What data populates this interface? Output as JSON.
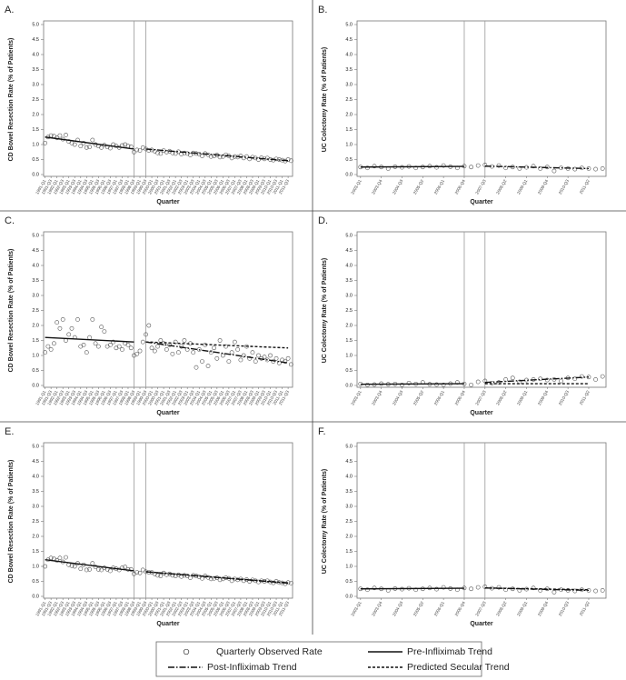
{
  "chart_data": [
    {
      "type": "scatter",
      "label": "A.",
      "y_label": "CD Bowel Resection Rate (% of Patients)",
      "x_label": "Quarter",
      "color": "#555555",
      "ylim": [
        0,
        5
      ],
      "yticks": [
        {
          "value": 0,
          "label": "0.0"
        },
        0.5,
        {
          "value": 1,
          "label": "1.0"
        },
        1.5,
        {
          "value": 2,
          "label": "2.0"
        },
        2.5,
        {
          "value": 3,
          "label": "3.0"
        },
        3.5,
        {
          "value": 4,
          "label": "4.0"
        },
        4.5,
        {
          "value": 5,
          "label": "5.0"
        }
      ],
      "categories": [
        "1991-Q1",
        null,
        "1991-Q3",
        null,
        "1992-Q1",
        null,
        "1992-Q3",
        null,
        "1993-Q1",
        null,
        "1993-Q3",
        null,
        "1994-Q1",
        null,
        "1994-Q3",
        null,
        "1995-Q1",
        null,
        "1995-Q3",
        null,
        "1996-Q1",
        null,
        "1996-Q3",
        null,
        "1997-Q1",
        null,
        "1997-Q3",
        null,
        "1998-Q1",
        null,
        "1998-Q3",
        null,
        "1999-Q1",
        null,
        "1999-Q3",
        null,
        "2000-Q1",
        null,
        "2000-Q3",
        null,
        "2001-Q1",
        null,
        "2001-Q3",
        null,
        "2002-Q1",
        null,
        "2002-Q3",
        null,
        "2003-Q1",
        null,
        "2003-Q3",
        null,
        "2004-Q1",
        null,
        "2004-Q3",
        null,
        "2005-Q1",
        null,
        "2005-Q3",
        null,
        "2006-Q1",
        null,
        "2006-Q3",
        null,
        "2007-Q1",
        null,
        "2007-Q3",
        null,
        "2008-Q1",
        null,
        "2008-Q3",
        null,
        "2009-Q1",
        null,
        "2009-Q3",
        null,
        "2010-Q1",
        null,
        "2010-Q3",
        null,
        "2011-Q1",
        null,
        "2011-Q3",
        null
      ],
      "values": [
        1.05,
        1.25,
        1.3,
        1.28,
        1.22,
        1.3,
        1.18,
        1.32,
        1.1,
        1.05,
        1.0,
        1.15,
        0.95,
        1.05,
        0.9,
        0.92,
        1.15,
        1.0,
        0.95,
        0.9,
        0.98,
        0.92,
        0.88,
        1.0,
        0.95,
        0.9,
        0.97,
        1.0,
        0.95,
        0.93,
        0.75,
        0.82,
        0.8,
        0.9,
        0.85,
        0.8,
        0.82,
        0.78,
        0.72,
        0.7,
        0.8,
        0.75,
        0.78,
        0.72,
        0.7,
        0.76,
        0.68,
        0.72,
        0.7,
        0.65,
        0.72,
        0.7,
        0.68,
        0.62,
        0.7,
        0.66,
        0.6,
        0.62,
        0.65,
        0.58,
        0.6,
        0.66,
        0.62,
        0.55,
        0.6,
        0.58,
        0.62,
        0.55,
        0.6,
        0.52,
        0.58,
        0.55,
        0.5,
        0.56,
        0.52,
        0.55,
        0.5,
        0.48,
        0.52,
        0.5,
        0.48,
        0.45,
        0.5,
        0.46
      ],
      "vlines": [
        "1998-Q3",
        "1999-Q3"
      ],
      "trends": [
        {
          "dash": "solid",
          "x": [
            "1991-Q1",
            "1998-Q3"
          ],
          "values": [
            1.25,
            0.85
          ]
        },
        {
          "dash": "dashdot",
          "x": [
            "1999-Q3",
            "2011-Q3"
          ],
          "values": [
            0.85,
            0.46
          ]
        }
      ]
    },
    {
      "type": "scatter",
      "label": "B.",
      "y_label": "UC Colectomy Rate (% of Patients)",
      "x_label": "Quarter",
      "color": "#555555",
      "ylim": [
        0,
        5
      ],
      "yticks": [
        {
          "value": 0,
          "label": "0.0"
        },
        0.5,
        {
          "value": 1,
          "label": "1.0"
        },
        1.5,
        {
          "value": 2,
          "label": "2.0"
        },
        2.5,
        {
          "value": 3,
          "label": "3.0"
        },
        3.5,
        {
          "value": 4,
          "label": "4.0"
        },
        4.5,
        {
          "value": 5,
          "label": "5.0"
        }
      ],
      "categories": [
        "2003-Q1",
        null,
        null,
        "2003-Q4",
        null,
        null,
        "2004-Q3",
        null,
        null,
        "2005-Q2",
        null,
        null,
        "2006-Q1",
        null,
        null,
        "2006-Q4",
        null,
        null,
        "2007-Q3",
        null,
        null,
        "2008-Q2",
        null,
        null,
        "2009-Q1",
        null,
        null,
        "2009-Q4",
        null,
        null,
        "2010-Q3",
        null,
        null,
        "2011-Q2",
        null,
        null
      ],
      "values": [
        0.25,
        0.22,
        0.28,
        0.25,
        0.2,
        0.26,
        0.24,
        0.27,
        0.22,
        0.25,
        0.28,
        0.24,
        0.3,
        0.26,
        0.22,
        0.28,
        0.25,
        0.3,
        0.32,
        0.27,
        0.3,
        0.22,
        0.25,
        0.2,
        0.24,
        0.28,
        0.2,
        0.25,
        0.12,
        0.22,
        0.2,
        0.18,
        0.22,
        0.2,
        0.18,
        0.2
      ],
      "vlines": [
        "2006-Q4",
        "2007-Q3"
      ],
      "trends": [
        {
          "dash": "solid",
          "x": [
            "2003-Q1",
            "2006-Q4"
          ],
          "values": [
            0.25,
            0.27
          ]
        },
        {
          "dash": "dashdot",
          "x": [
            "2007-Q3",
            "2011-Q2"
          ],
          "values": [
            0.28,
            0.2
          ]
        }
      ]
    },
    {
      "type": "scatter",
      "label": "C.",
      "y_label": "CD Bowel Resection Rate (% of Patients)",
      "x_label": "Quarter",
      "color": "#555555",
      "ylim": [
        0,
        5
      ],
      "yticks": [
        {
          "value": 0,
          "label": "0.0"
        },
        0.5,
        {
          "value": 1,
          "label": "1.0"
        },
        1.5,
        {
          "value": 2,
          "label": "2.0"
        },
        2.5,
        {
          "value": 3,
          "label": "3.0"
        },
        3.5,
        {
          "value": 4,
          "label": "4.0"
        },
        4.5,
        {
          "value": 5,
          "label": "5.0"
        }
      ],
      "categories": [
        "1991-Q1",
        null,
        "1991-Q3",
        null,
        "1992-Q1",
        null,
        "1992-Q3",
        null,
        "1993-Q1",
        null,
        "1993-Q3",
        null,
        "1994-Q1",
        null,
        "1994-Q3",
        null,
        "1995-Q1",
        null,
        "1995-Q3",
        null,
        "1996-Q1",
        null,
        "1996-Q3",
        null,
        "1997-Q1",
        null,
        "1997-Q3",
        null,
        "1998-Q1",
        null,
        "1998-Q3",
        null,
        "1999-Q1",
        null,
        "1999-Q3",
        null,
        "2000-Q1",
        null,
        "2000-Q3",
        null,
        "2001-Q1",
        null,
        "2001-Q3",
        null,
        "2002-Q1",
        null,
        "2002-Q3",
        null,
        "2003-Q1",
        null,
        "2003-Q3",
        null,
        "2004-Q1",
        null,
        "2004-Q3",
        null,
        "2005-Q1",
        null,
        "2005-Q3",
        null,
        "2006-Q1",
        null,
        "2006-Q3",
        null,
        "2007-Q1",
        null,
        "2007-Q3",
        null,
        "2008-Q1",
        null,
        "2008-Q3",
        null,
        "2009-Q1",
        null,
        "2009-Q3",
        null,
        "2010-Q1",
        null,
        "2010-Q3",
        null,
        "2011-Q1",
        null,
        "2011-Q3",
        null
      ],
      "values": [
        1.1,
        1.3,
        1.2,
        1.4,
        2.1,
        1.9,
        2.2,
        1.5,
        1.7,
        1.9,
        1.6,
        2.2,
        1.3,
        1.35,
        1.1,
        1.6,
        2.2,
        1.4,
        1.3,
        1.95,
        1.8,
        1.3,
        1.35,
        1.45,
        1.25,
        1.3,
        1.2,
        1.4,
        1.35,
        1.25,
        1.0,
        1.05,
        1.15,
        1.45,
        1.7,
        2.0,
        1.25,
        1.15,
        1.3,
        1.5,
        1.4,
        1.2,
        1.35,
        1.05,
        1.45,
        1.1,
        1.3,
        1.5,
        1.2,
        1.4,
        1.1,
        0.6,
        1.2,
        0.8,
        1.35,
        0.65,
        1.1,
        1.25,
        0.9,
        1.5,
        1.0,
        1.3,
        0.8,
        1.1,
        1.45,
        1.2,
        0.85,
        1.0,
        1.3,
        0.9,
        1.1,
        0.8,
        1.0,
        0.9,
        0.95,
        0.85,
        1.0,
        0.8,
        0.9,
        0.75,
        0.85,
        0.8,
        0.9,
        0.7
      ],
      "vlines": [
        "1998-Q3",
        "1999-Q3"
      ],
      "trends": [
        {
          "dash": "solid",
          "x": [
            "1991-Q1",
            "1998-Q3"
          ],
          "values": [
            1.6,
            1.45
          ]
        },
        {
          "dash": "dashdot",
          "x": [
            "1999-Q3",
            "2011-Q3"
          ],
          "values": [
            1.45,
            0.75
          ]
        },
        {
          "dash": "dashed",
          "x": [
            "1999-Q3",
            "2011-Q3"
          ],
          "values": [
            1.45,
            1.25
          ]
        }
      ]
    },
    {
      "type": "scatter",
      "label": "D.",
      "y_label": "UC Colectomy Rate (% of Patients)",
      "x_label": "Quarter",
      "color": "#555555",
      "ylim": [
        0,
        5
      ],
      "yticks": [
        {
          "value": 0,
          "label": "0.0"
        },
        0.5,
        {
          "value": 1,
          "label": "1.0"
        },
        1.5,
        {
          "value": 2,
          "label": "2.0"
        },
        2.5,
        {
          "value": 3,
          "label": "3.0"
        },
        3.5,
        {
          "value": 4,
          "label": "4.0"
        },
        4.5,
        {
          "value": 5,
          "label": "5.0"
        }
      ],
      "categories": [
        "2003-Q1",
        null,
        null,
        "2003-Q4",
        null,
        null,
        "2004-Q3",
        null,
        null,
        "2005-Q2",
        null,
        null,
        "2006-Q1",
        null,
        null,
        "2006-Q4",
        null,
        null,
        "2007-Q3",
        null,
        null,
        "2008-Q2",
        null,
        null,
        "2009-Q1",
        null,
        null,
        "2009-Q4",
        null,
        null,
        "2010-Q3",
        null,
        null,
        "2011-Q2",
        null,
        null
      ],
      "values": [
        0.05,
        0.02,
        0.03,
        0.06,
        0.04,
        0.05,
        0.02,
        0.08,
        0.05,
        0.1,
        0.04,
        0.03,
        0.02,
        0.06,
        0.1,
        0.05,
        0.02,
        0.12,
        0.15,
        0.08,
        0.1,
        0.2,
        0.25,
        0.12,
        0.18,
        0.2,
        0.22,
        0.18,
        0.2,
        0.15,
        0.25,
        0.22,
        0.3,
        0.28,
        0.2,
        0.3
      ],
      "vlines": [
        "2006-Q4",
        "2007-Q3"
      ],
      "trends": [
        {
          "dash": "solid",
          "x": [
            "2003-Q1",
            "2006-Q4"
          ],
          "values": [
            0.04,
            0.06
          ]
        },
        {
          "dash": "dashdot",
          "x": [
            "2007-Q3",
            "2011-Q2"
          ],
          "values": [
            0.1,
            0.28
          ]
        },
        {
          "dash": "dashed",
          "x": [
            "2007-Q3",
            "2011-Q2"
          ],
          "values": [
            0.06,
            0.06
          ]
        }
      ]
    },
    {
      "type": "scatter",
      "label": "E.",
      "y_label": "CD Bowel Resection Rate (% of Patients)",
      "x_label": "Quarter",
      "color": "#555555",
      "ylim": [
        0,
        5
      ],
      "yticks": [
        {
          "value": 0,
          "label": "0.0"
        },
        0.5,
        {
          "value": 1,
          "label": "1.0"
        },
        1.5,
        {
          "value": 2,
          "label": "2.0"
        },
        2.5,
        {
          "value": 3,
          "label": "3.0"
        },
        3.5,
        {
          "value": 4,
          "label": "4.0"
        },
        4.5,
        {
          "value": 5,
          "label": "5.0"
        }
      ],
      "categories": [
        "1991-Q1",
        null,
        "1991-Q3",
        null,
        "1992-Q1",
        null,
        "1992-Q3",
        null,
        "1993-Q1",
        null,
        "1993-Q3",
        null,
        "1994-Q1",
        null,
        "1994-Q3",
        null,
        "1995-Q1",
        null,
        "1995-Q3",
        null,
        "1996-Q1",
        null,
        "1996-Q3",
        null,
        "1997-Q1",
        null,
        "1997-Q3",
        null,
        "1998-Q1",
        null,
        "1998-Q3",
        null,
        "1999-Q1",
        null,
        "1999-Q3",
        null,
        "2000-Q1",
        null,
        "2000-Q3",
        null,
        "2001-Q1",
        null,
        "2001-Q3",
        null,
        "2002-Q1",
        null,
        "2002-Q3",
        null,
        "2003-Q1",
        null,
        "2003-Q3",
        null,
        "2004-Q1",
        null,
        "2004-Q3",
        null,
        "2005-Q1",
        null,
        "2005-Q3",
        null,
        "2006-Q1",
        null,
        "2006-Q3",
        null,
        "2007-Q1",
        null,
        "2007-Q3",
        null,
        "2008-Q1",
        null,
        "2008-Q3",
        null,
        "2009-Q1",
        null,
        "2009-Q3",
        null,
        "2010-Q1",
        null,
        "2010-Q3",
        null,
        "2011-Q1",
        null,
        "2011-Q3",
        null
      ],
      "values": [
        1.0,
        1.22,
        1.28,
        1.25,
        1.2,
        1.28,
        1.15,
        1.3,
        1.05,
        1.02,
        1.0,
        1.1,
        0.92,
        1.05,
        0.88,
        0.9,
        1.1,
        0.98,
        0.9,
        0.88,
        0.95,
        0.9,
        0.85,
        0.95,
        0.92,
        0.88,
        0.95,
        0.98,
        0.9,
        0.9,
        0.75,
        0.8,
        0.78,
        0.88,
        0.82,
        0.8,
        0.8,
        0.75,
        0.7,
        0.68,
        0.78,
        0.72,
        0.75,
        0.7,
        0.68,
        0.72,
        0.66,
        0.7,
        0.68,
        0.62,
        0.7,
        0.68,
        0.65,
        0.6,
        0.68,
        0.63,
        0.58,
        0.6,
        0.62,
        0.55,
        0.58,
        0.62,
        0.6,
        0.52,
        0.58,
        0.55,
        0.58,
        0.52,
        0.56,
        0.5,
        0.55,
        0.52,
        0.48,
        0.52,
        0.5,
        0.52,
        0.48,
        0.45,
        0.5,
        0.46,
        0.45,
        0.42,
        0.46,
        0.44
      ],
      "vlines": [
        "1998-Q3",
        "1999-Q3"
      ],
      "trends": [
        {
          "dash": "solid",
          "x": [
            "1991-Q1",
            "1998-Q3"
          ],
          "values": [
            1.22,
            0.85
          ]
        },
        {
          "dash": "dashdot",
          "x": [
            "1999-Q3",
            "2011-Q3"
          ],
          "values": [
            0.82,
            0.44
          ]
        },
        {
          "dash": "dashed",
          "x": [
            "1999-Q3",
            "2011-Q3"
          ],
          "values": [
            0.82,
            0.45
          ]
        }
      ]
    },
    {
      "type": "scatter",
      "label": "F.",
      "y_label": "UC Colectomy Rate (% of Patients)",
      "x_label": "Quarter",
      "color": "#555555",
      "ylim": [
        0,
        5
      ],
      "yticks": [
        {
          "value": 0,
          "label": "0.0"
        },
        0.5,
        {
          "value": 1,
          "label": "1.0"
        },
        1.5,
        {
          "value": 2,
          "label": "2.0"
        },
        2.5,
        {
          "value": 3,
          "label": "3.0"
        },
        3.5,
        {
          "value": 4,
          "label": "4.0"
        },
        4.5,
        {
          "value": 5,
          "label": "5.0"
        }
      ],
      "categories": [
        "2003-Q1",
        null,
        null,
        "2003-Q4",
        null,
        null,
        "2004-Q3",
        null,
        null,
        "2005-Q2",
        null,
        null,
        "2006-Q1",
        null,
        null,
        "2006-Q4",
        null,
        null,
        "2007-Q3",
        null,
        null,
        "2008-Q2",
        null,
        null,
        "2009-Q1",
        null,
        null,
        "2009-Q4",
        null,
        null,
        "2010-Q3",
        null,
        null,
        "2011-Q2",
        null,
        null
      ],
      "values": [
        0.25,
        0.22,
        0.28,
        0.25,
        0.2,
        0.26,
        0.24,
        0.27,
        0.22,
        0.25,
        0.28,
        0.24,
        0.3,
        0.26,
        0.22,
        0.28,
        0.25,
        0.3,
        0.32,
        0.27,
        0.3,
        0.22,
        0.25,
        0.2,
        0.24,
        0.28,
        0.2,
        0.25,
        0.14,
        0.22,
        0.2,
        0.18,
        0.22,
        0.2,
        0.18,
        0.2
      ],
      "vlines": [
        "2006-Q4",
        "2007-Q3"
      ],
      "trends": [
        {
          "dash": "solid",
          "x": [
            "2003-Q1",
            "2006-Q4"
          ],
          "values": [
            0.25,
            0.27
          ]
        },
        {
          "dash": "dashdot",
          "x": [
            "2007-Q3",
            "2011-Q2"
          ],
          "values": [
            0.28,
            0.2
          ]
        },
        {
          "dash": "dashed",
          "x": [
            "2007-Q3",
            "2011-Q2"
          ],
          "values": [
            0.28,
            0.22
          ]
        }
      ]
    }
  ],
  "legend": {
    "items": [
      {
        "name": "Quarterly Observed Rate",
        "marker": "circle"
      },
      {
        "name": "Pre-Infliximab Trend",
        "dash": "solid"
      },
      {
        "name": "Post-Infliximab Trend",
        "dash": "dashdot"
      },
      {
        "name": "Predicted Secular Trend",
        "dash": "dashed"
      }
    ]
  }
}
